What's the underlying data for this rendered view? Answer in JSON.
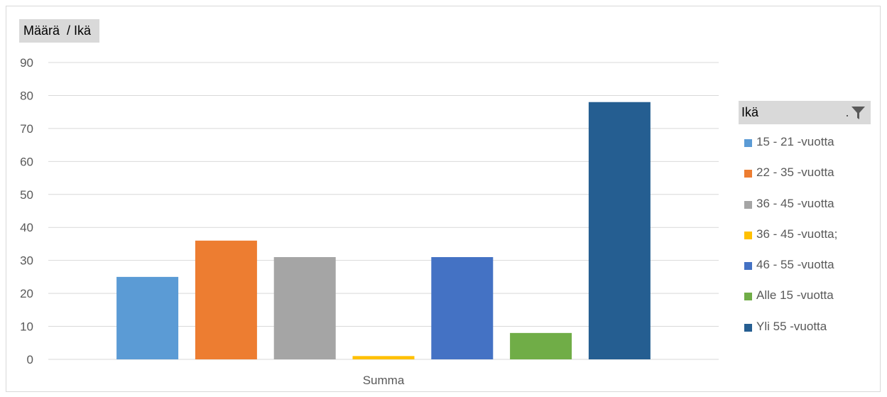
{
  "field_button": {
    "label": "Määrä  / Ikä"
  },
  "legend": {
    "title": "Ikä",
    "filter_icon": "filter-funnel-icon"
  },
  "chart_data": {
    "type": "bar",
    "categories": [
      "Summa"
    ],
    "ylim": [
      0,
      90
    ],
    "yticks": [
      0,
      10,
      20,
      30,
      40,
      50,
      60,
      70,
      80,
      90
    ],
    "grid": true,
    "legend_position": "right",
    "series": [
      {
        "name": "15 - 21 -vuotta",
        "values": [
          25
        ],
        "color": "#5B9BD5"
      },
      {
        "name": "22 - 35 -vuotta",
        "values": [
          36
        ],
        "color": "#ED7D31"
      },
      {
        "name": "36 - 45 -vuotta",
        "values": [
          31
        ],
        "color": "#A5A5A5"
      },
      {
        "name": "36 - 45 -vuotta;",
        "values": [
          1
        ],
        "color": "#FFC000"
      },
      {
        "name": "46 - 55 -vuotta",
        "values": [
          31
        ],
        "color": "#4472C4"
      },
      {
        "name": "Alle 15 -vuotta",
        "values": [
          8
        ],
        "color": "#70AD47"
      },
      {
        "name": "Yli 55 -vuotta",
        "values": [
          78
        ],
        "color": "#255E91"
      }
    ]
  }
}
